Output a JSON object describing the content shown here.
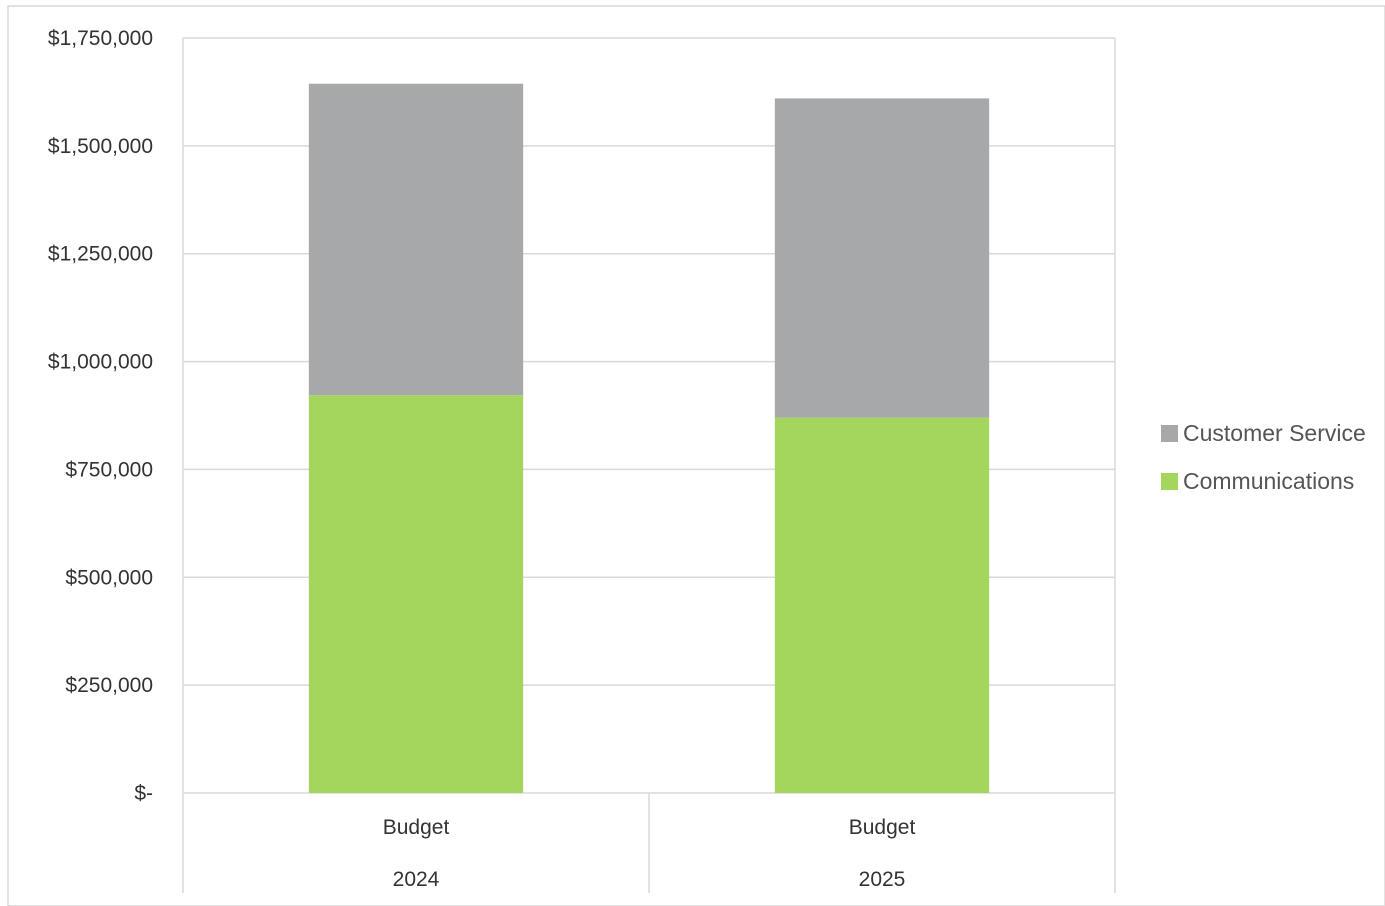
{
  "chart_data": {
    "type": "bar",
    "stacked": true,
    "categories": [
      {
        "label": "Budget",
        "group": "2024"
      },
      {
        "label": "Budget",
        "group": "2025"
      }
    ],
    "series": [
      {
        "name": "Communications",
        "color": "#a4d65e",
        "values": [
          922000,
          870000
        ]
      },
      {
        "name": "Customer Service",
        "color": "#a7a8aa",
        "values": [
          722000,
          740000
        ]
      }
    ],
    "ylim": [
      0,
      1750000
    ],
    "yticks": [
      {
        "value": 0,
        "label": "$-"
      },
      {
        "value": 250000,
        "label": "$250,000"
      },
      {
        "value": 500000,
        "label": "$500,000"
      },
      {
        "value": 750000,
        "label": "$750,000"
      },
      {
        "value": 1000000,
        "label": "$1,000,000"
      },
      {
        "value": 1250000,
        "label": "$1,250,000"
      },
      {
        "value": 1500000,
        "label": "$1,500,000"
      },
      {
        "value": 1750000,
        "label": "$1,750,000"
      }
    ],
    "grid": true,
    "legend_position": "right",
    "legend": [
      {
        "name": "Customer Service",
        "color": "#a7a8aa"
      },
      {
        "name": "Communications",
        "color": "#a4d65e"
      }
    ]
  }
}
